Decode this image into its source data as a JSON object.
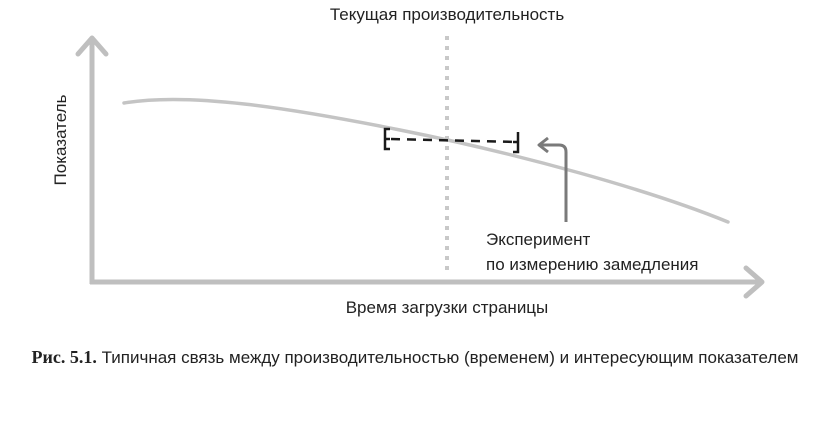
{
  "diagram": {
    "current_performance_label": "Текущая производительность",
    "y_axis_label": "Показатель",
    "x_axis_label": "Время загрузки страницы",
    "experiment_label_line1": "Эксперимент",
    "experiment_label_line2": "по измерению замедления"
  },
  "caption": {
    "number": "Рис. 5.1.",
    "text": "Типичная связь между производительностью (временем) и интересующим показателем"
  },
  "colors": {
    "axis": "#bfbfbf",
    "curve": "#c4c4c4",
    "dotted_line": "#c8c8c8",
    "dashed_interval": "#1a1a1a",
    "pointer_arrow": "#7a7a7a",
    "text": "#222222"
  }
}
